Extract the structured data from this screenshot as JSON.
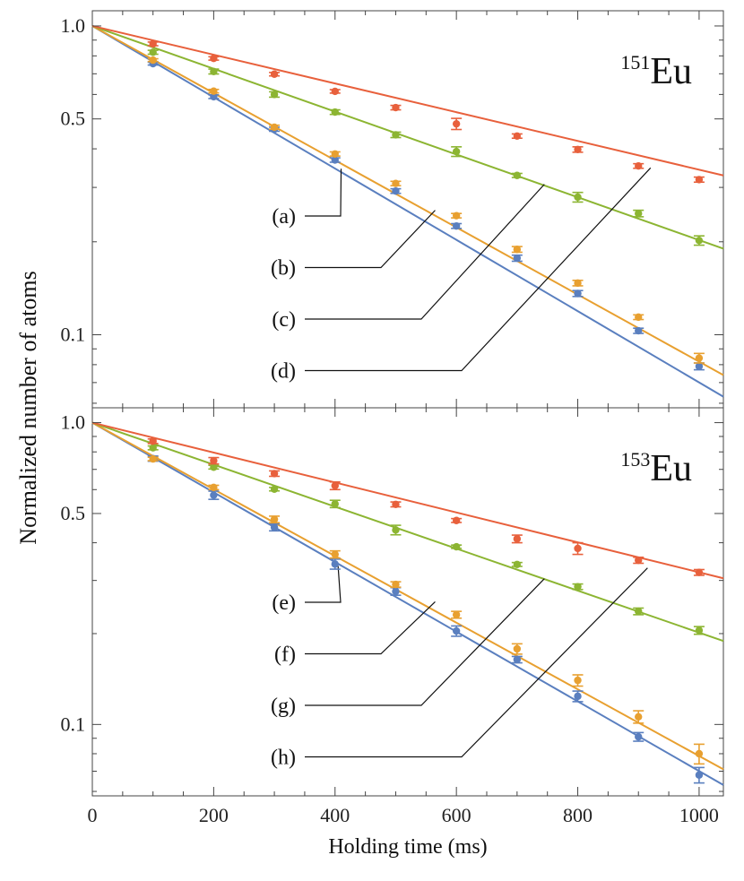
{
  "chart_data": {
    "type": "scatter",
    "x_axis": {
      "label": "Holding time (ms)",
      "range": [
        0,
        1040
      ],
      "ticks": [
        0,
        200,
        400,
        600,
        800,
        1000
      ],
      "tick_labels": [
        "0",
        "200",
        "400",
        "600",
        "800",
        "1000"
      ]
    },
    "y_axis_label": "Normalized number of atoms",
    "y_scale": "log",
    "grid": false,
    "panels": [
      {
        "id": "top",
        "isotope_mass": "151",
        "isotope_symbol": "Eu",
        "ylim": [
          0.058,
          1.12
        ],
        "y_ticks": [
          1.0,
          0.5,
          0.1
        ],
        "y_tick_labels": [
          "1.0",
          "0.5",
          "0.1"
        ],
        "fit_end_values": [
          0.063,
          0.074,
          0.19,
          0.328
        ],
        "series": [
          {
            "label": "(a)",
            "color": "#5a7fbf",
            "x": [
              100,
              200,
              300,
              400,
              500,
              600,
              700,
              800,
              900,
              1000
            ],
            "y": [
              0.755,
              0.59,
              0.463,
              0.368,
              0.292,
              0.225,
              0.177,
              0.136,
              0.103,
              0.079
            ],
            "err": [
              0.008,
              0.008,
              0.007,
              0.006,
              0.005,
              0.004,
              0.004,
              0.003,
              0.002,
              0.002
            ],
            "callout_target": [
              410,
              0.345
            ]
          },
          {
            "label": "(b)",
            "color": "#e8a030",
            "x": [
              100,
              200,
              300,
              400,
              500,
              600,
              700,
              800,
              900,
              1000
            ],
            "y": [
              0.775,
              0.615,
              0.47,
              0.385,
              0.309,
              0.243,
              0.189,
              0.147,
              0.114,
              0.084
            ],
            "err": [
              0.008,
              0.008,
              0.007,
              0.006,
              0.005,
              0.004,
              0.004,
              0.003,
              0.002,
              0.003
            ],
            "callout_target": [
              565,
              0.253
            ]
          },
          {
            "label": "(c)",
            "color": "#8cb532",
            "x": [
              100,
              200,
              300,
              400,
              500,
              600,
              700,
              800,
              900,
              1000
            ],
            "y": [
              0.822,
              0.712,
              0.6,
              0.526,
              0.444,
              0.392,
              0.328,
              0.279,
              0.247,
              0.202
            ],
            "err": [
              0.012,
              0.013,
              0.012,
              0.009,
              0.009,
              0.014,
              0.005,
              0.01,
              0.006,
              0.007
            ],
            "callout_target": [
              745,
              0.307
            ]
          },
          {
            "label": "(d)",
            "color": "#e8603c",
            "x": [
              100,
              200,
              300,
              400,
              500,
              600,
              700,
              800,
              900,
              1000
            ],
            "y": [
              0.875,
              0.785,
              0.698,
              0.614,
              0.544,
              0.482,
              0.44,
              0.398,
              0.352,
              0.318
            ],
            "err": [
              0.012,
              0.01,
              0.009,
              0.008,
              0.009,
              0.02,
              0.007,
              0.008,
              0.006,
              0.006
            ],
            "callout_target": [
              920,
              0.347
            ]
          }
        ]
      },
      {
        "id": "bottom",
        "isotope_mass": "153",
        "isotope_symbol": "Eu",
        "ylim": [
          0.058,
          1.12
        ],
        "y_ticks": [
          1.0,
          0.5,
          0.1
        ],
        "y_tick_labels": [
          "1.0",
          "0.5",
          "0.1"
        ],
        "fit_end_values": [
          0.063,
          0.071,
          0.189,
          0.305
        ],
        "series": [
          {
            "label": "(e)",
            "color": "#5a7fbf",
            "x": [
              100,
              200,
              300,
              400,
              500,
              600,
              700,
              800,
              900,
              1000
            ],
            "y": [
              0.76,
              0.575,
              0.45,
              0.34,
              0.276,
              0.204,
              0.164,
              0.124,
              0.091,
              0.068
            ],
            "err": [
              0.015,
              0.018,
              0.012,
              0.013,
              0.008,
              0.008,
              0.004,
              0.005,
              0.003,
              0.004
            ],
            "callout_target": [
              405,
              0.335
            ]
          },
          {
            "label": "(f)",
            "color": "#e8a030",
            "x": [
              100,
              200,
              300,
              400,
              500,
              600,
              700,
              800,
              900,
              1000
            ],
            "y": [
              0.758,
              0.61,
              0.478,
              0.366,
              0.291,
              0.231,
              0.178,
              0.14,
              0.106,
              0.08
            ],
            "err": [
              0.01,
              0.01,
              0.012,
              0.01,
              0.006,
              0.006,
              0.007,
              0.006,
              0.005,
              0.006
            ],
            "callout_target": [
              565,
              0.255
            ]
          },
          {
            "label": "(g)",
            "color": "#8cb532",
            "x": [
              100,
              200,
              300,
              400,
              500,
              600,
              700,
              800,
              900,
              1000
            ],
            "y": [
              0.825,
              0.712,
              0.602,
              0.538,
              0.441,
              0.388,
              0.339,
              0.286,
              0.237,
              0.205
            ],
            "err": [
              0.012,
              0.01,
              0.008,
              0.015,
              0.016,
              0.005,
              0.005,
              0.006,
              0.006,
              0.006
            ],
            "callout_target": [
              745,
              0.304
            ]
          },
          {
            "label": "(h)",
            "color": "#e8603c",
            "x": [
              100,
              200,
              300,
              400,
              500,
              600,
              700,
              800,
              900,
              1000
            ],
            "y": [
              0.868,
              0.748,
              0.678,
              0.618,
              0.536,
              0.474,
              0.412,
              0.383,
              0.35,
              0.319
            ],
            "err": [
              0.015,
              0.018,
              0.014,
              0.018,
              0.01,
              0.007,
              0.012,
              0.017,
              0.008,
              0.007
            ],
            "callout_target": [
              915,
              0.33
            ]
          }
        ]
      }
    ]
  }
}
